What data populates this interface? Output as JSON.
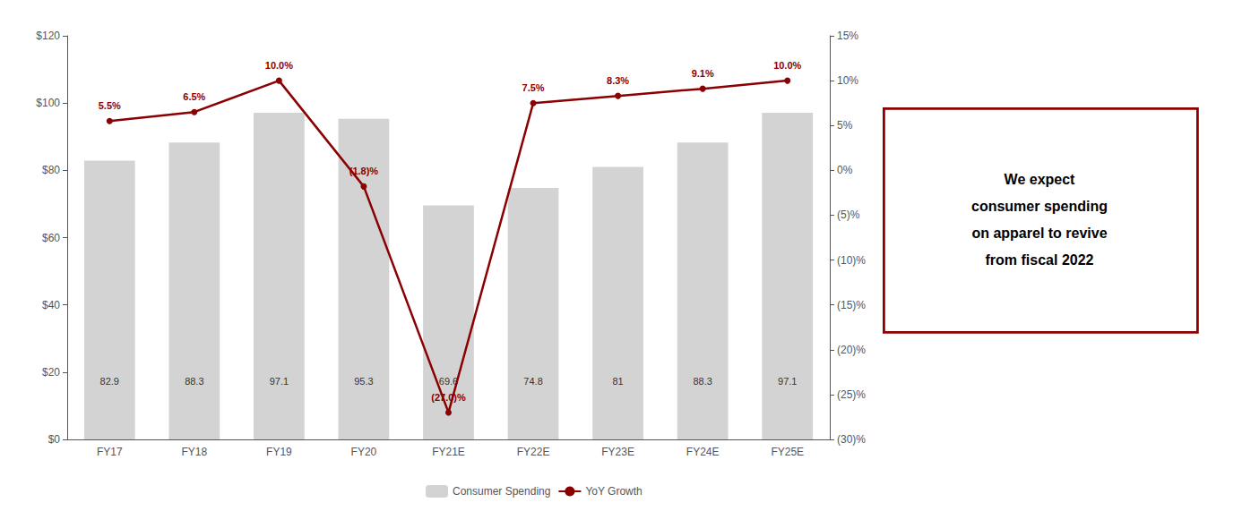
{
  "chart_data": {
    "type": "bar",
    "categories": [
      "FY17",
      "FY18",
      "FY19",
      "FY20",
      "FY21E",
      "FY22E",
      "FY23E",
      "FY24E",
      "FY25E"
    ],
    "series": [
      {
        "name": "Consumer Spending",
        "type": "bar",
        "color": "#d3d3d3",
        "values": [
          82.9,
          88.3,
          97.1,
          95.3,
          69.6,
          74.8,
          81.0,
          88.3,
          97.1
        ]
      },
      {
        "name": "YoY Growth",
        "type": "line",
        "axis": "y2",
        "color": "#8b0000",
        "marker": "circle",
        "values": [
          5.5,
          6.5,
          10.0,
          -1.8,
          -27.0,
          7.5,
          8.3,
          9.1,
          10.0
        ],
        "value_labels": [
          "5.5%",
          "6.5%",
          "10.0%",
          "(1.8)%",
          "(27.0)%",
          "7.5%",
          "8.3%",
          "9.1%",
          "10.0%"
        ]
      }
    ],
    "ylim": [
      0,
      120
    ],
    "yticks": [
      {
        "value": 0,
        "label": "$0"
      },
      {
        "value": 20,
        "label": "$20"
      },
      {
        "value": 40,
        "label": "$40"
      },
      {
        "value": 60,
        "label": "$60"
      },
      {
        "value": 80,
        "label": "$80"
      },
      {
        "value": 100,
        "label": "$100"
      },
      {
        "value": 120,
        "label": "$120"
      }
    ],
    "y2lim": [
      -30,
      15
    ],
    "y2ticks": [
      {
        "value": -30,
        "label": "(30)%"
      },
      {
        "value": -25,
        "label": "(25)%"
      },
      {
        "value": -20,
        "label": "(20)%"
      },
      {
        "value": -15,
        "label": "(15)%"
      },
      {
        "value": -10,
        "label": "(10)%"
      },
      {
        "value": -5,
        "label": "(5)%"
      },
      {
        "value": 0,
        "label": "0%"
      },
      {
        "value": 5,
        "label": "5%"
      },
      {
        "value": 10,
        "label": "10%"
      },
      {
        "value": 15,
        "label": "15%"
      }
    ],
    "data_labels": true,
    "grid": false,
    "legend": "bottom",
    "annotations": [
      {
        "text": "We expect\nconsumer spending\non apparel to revive\nfrom fiscal 2022",
        "color": "#8b0000"
      }
    ]
  }
}
